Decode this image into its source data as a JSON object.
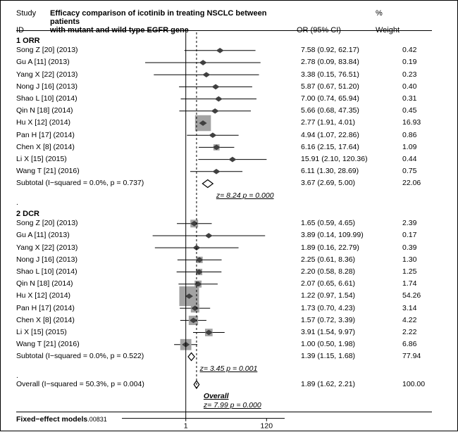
{
  "title_line1": "Efficacy comparison of icotinib in treating NSCLC between patients",
  "title_line2": "with mutant and wild type EGFR gene",
  "header": {
    "study": "Study",
    "id": "ID",
    "or": "OR (95% CI)",
    "pct": "%",
    "weight": "Weight"
  },
  "plot": {
    "x_log_min": -1.5,
    "x_log_max": 2.4,
    "tick1": "1",
    "tick120": "120",
    "ref_line_value": 1.89,
    "colors": {
      "marker": "#404040",
      "box": "#a3a3a3",
      "outline": "#000"
    }
  },
  "groups": [
    {
      "name": "1  ORR",
      "rows": [
        {
          "study": "Song Z [20] (2013)",
          "or": 7.58,
          "lo": 0.92,
          "hi": 62.17,
          "ci": "7.58 (0.92, 62.17)",
          "wt": "0.42"
        },
        {
          "study": "Gu A [11] (2013)",
          "or": 2.78,
          "lo": 0.09,
          "hi": 83.84,
          "ci": "2.78 (0.09, 83.84)",
          "wt": "0.19"
        },
        {
          "study": "Yang X [22] (2013)",
          "or": 3.38,
          "lo": 0.15,
          "hi": 76.51,
          "ci": "3.38 (0.15, 76.51)",
          "wt": "0.23"
        },
        {
          "study": "Nong J [16] (2013)",
          "or": 5.87,
          "lo": 0.67,
          "hi": 51.2,
          "ci": "5.87 (0.67, 51.20)",
          "wt": "0.40"
        },
        {
          "study": "Shao L [10] (2014)",
          "or": 7.0,
          "lo": 0.74,
          "hi": 65.94,
          "ci": "7.00 (0.74, 65.94)",
          "wt": "0.31"
        },
        {
          "study": "Qin N [18] (2014)",
          "or": 5.66,
          "lo": 0.68,
          "hi": 47.35,
          "ci": "5.66 (0.68, 47.35)",
          "wt": "0.45"
        },
        {
          "study": "Hu X [12] (2014)",
          "or": 2.77,
          "lo": 1.91,
          "hi": 4.01,
          "ci": "2.77 (1.91, 4.01)",
          "wt": "16.93"
        },
        {
          "study": "Pan H [17] (2014)",
          "or": 4.94,
          "lo": 1.07,
          "hi": 22.86,
          "ci": "4.94 (1.07, 22.86)",
          "wt": "0.86"
        },
        {
          "study": "Chen X [8] (2014)",
          "or": 6.16,
          "lo": 2.15,
          "hi": 17.64,
          "ci": "6.16 (2.15, 17.64)",
          "wt": "1.09"
        },
        {
          "study": "Li X [15] (2015)",
          "or": 15.91,
          "lo": 2.1,
          "hi": 120.36,
          "ci": "15.91 (2.10, 120.36)",
          "wt": "0.44"
        },
        {
          "study": "Wang T [21] (2016)",
          "or": 6.11,
          "lo": 1.3,
          "hi": 28.69,
          "ci": "6.11 (1.30, 28.69)",
          "wt": "0.75"
        }
      ],
      "subtotal": {
        "txt": "Subtotal  (I−squared = 0.0%, p = 0.737)",
        "or": 3.67,
        "lo": 2.69,
        "hi": 5.0,
        "ci": "3.67 (2.69, 5.00)",
        "wt": "22.06"
      },
      "z": "z=  8.24    p = 0.000"
    },
    {
      "name": "2  DCR",
      "rows": [
        {
          "study": "Song Z [20] (2013)",
          "or": 1.65,
          "lo": 0.59,
          "hi": 4.65,
          "ci": "1.65 (0.59, 4.65)",
          "wt": "2.39"
        },
        {
          "study": "Gu A [11] (2013)",
          "or": 3.89,
          "lo": 0.14,
          "hi": 109.99,
          "ci": "3.89 (0.14, 109.99)",
          "wt": "0.17"
        },
        {
          "study": "Yang X [22] (2013)",
          "or": 1.89,
          "lo": 0.16,
          "hi": 22.79,
          "ci": "1.89 (0.16, 22.79)",
          "wt": "0.39"
        },
        {
          "study": "Nong J [16] (2013)",
          "or": 2.25,
          "lo": 0.61,
          "hi": 8.36,
          "ci": "2.25 (0.61, 8.36)",
          "wt": "1.30"
        },
        {
          "study": "Shao L [10] (2014)",
          "or": 2.2,
          "lo": 0.58,
          "hi": 8.28,
          "ci": "2.20 (0.58, 8.28)",
          "wt": "1.25"
        },
        {
          "study": "Qin N [18] (2014)",
          "or": 2.07,
          "lo": 0.65,
          "hi": 6.61,
          "ci": "2.07 (0.65, 6.61)",
          "wt": "1.74"
        },
        {
          "study": "Hu X [12] (2014)",
          "or": 1.22,
          "lo": 0.97,
          "hi": 1.54,
          "ci": "1.22 (0.97, 1.54)",
          "wt": "54.26"
        },
        {
          "study": "Pan H [17] (2014)",
          "or": 1.73,
          "lo": 0.7,
          "hi": 4.23,
          "ci": "1.73 (0.70, 4.23)",
          "wt": "3.14"
        },
        {
          "study": "Chen X [8] (2014)",
          "or": 1.57,
          "lo": 0.72,
          "hi": 3.39,
          "ci": "1.57 (0.72, 3.39)",
          "wt": "4.22"
        },
        {
          "study": "Li X [15] (2015)",
          "or": 3.91,
          "lo": 1.54,
          "hi": 9.97,
          "ci": "3.91 (1.54, 9.97)",
          "wt": "2.22"
        },
        {
          "study": "Wang T [21] (2016)",
          "or": 1.0,
          "lo": 0.5,
          "hi": 1.98,
          "ci": "1.00 (0.50, 1.98)",
          "wt": "6.86"
        }
      ],
      "subtotal": {
        "txt": "Subtotal  (I−squared = 0.0%, p = 0.522)",
        "or": 1.39,
        "lo": 1.15,
        "hi": 1.68,
        "ci": "1.39 (1.15, 1.68)",
        "wt": "77.94"
      },
      "z": "z=  3.45    p = 0.001"
    }
  ],
  "overall": {
    "txt": "Overall  (I−squared = 50.3%, p = 0.004)",
    "or": 1.89,
    "lo": 1.62,
    "hi": 2.21,
    "ci": "1.89 (1.62, 2.21)",
    "wt": "100.00",
    "label": "Overall",
    "z": "z=  7.99    p = 0.000"
  },
  "footer": {
    "main": "Fixed−effect models",
    "sub": ".00831"
  }
}
